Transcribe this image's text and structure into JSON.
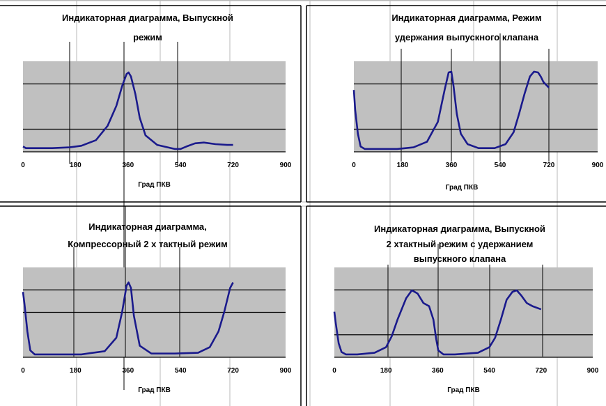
{
  "colors": {
    "plot_background": "#c0c0c0",
    "series_line": "#1a1a8c",
    "grid_line": "#000000",
    "frame_line": "#000000",
    "sheet_grid": "#b8b8b8"
  },
  "chart_data": [
    {
      "type": "line",
      "title_lines": [
        "Индикаторная диаграмма, Выпускной",
        "режим"
      ],
      "xlabel": "Град ПКВ",
      "xlim": [
        0,
        900
      ],
      "x_ticks": [
        "0",
        "180",
        "360",
        "540",
        "720",
        "900"
      ],
      "grid": true,
      "series": [
        {
          "x": [
            0,
            10,
            40,
            100,
            160,
            200,
            250,
            290,
            320,
            340,
            355,
            362,
            370,
            385,
            400,
            420,
            460,
            520,
            540,
            560,
            590,
            620,
            660,
            700,
            720
          ],
          "y": [
            0.04,
            0.02,
            0.02,
            0.02,
            0.03,
            0.05,
            0.12,
            0.3,
            0.55,
            0.8,
            0.95,
            0.97,
            0.92,
            0.7,
            0.4,
            0.18,
            0.06,
            0.01,
            0.01,
            0.04,
            0.08,
            0.09,
            0.07,
            0.06,
            0.06
          ]
        }
      ]
    },
    {
      "type": "line",
      "title_lines": [
        "Индикаторная диаграмма, Режим",
        "удержания выпускного клапана"
      ],
      "xlabel": "Град ПКВ",
      "xlim": [
        0,
        900
      ],
      "x_ticks": [
        "0",
        "180",
        "360",
        "540",
        "720",
        "900"
      ],
      "grid": true,
      "series": [
        {
          "x": [
            0,
            5,
            15,
            25,
            40,
            80,
            160,
            220,
            270,
            310,
            335,
            350,
            360,
            368,
            380,
            395,
            420,
            460,
            520,
            560,
            590,
            610,
            630,
            650,
            665,
            680,
            690,
            700,
            720
          ],
          "y": [
            0.75,
            0.5,
            0.2,
            0.04,
            0.01,
            0.01,
            0.01,
            0.03,
            0.1,
            0.35,
            0.75,
            0.97,
            0.98,
            0.8,
            0.45,
            0.2,
            0.07,
            0.02,
            0.02,
            0.07,
            0.22,
            0.45,
            0.7,
            0.92,
            0.98,
            0.97,
            0.92,
            0.85,
            0.78
          ]
        }
      ]
    },
    {
      "type": "line",
      "title_lines": [
        "Индикаторная диаграмма,",
        "Компрессорный 2 х тактный режим"
      ],
      "xlabel": "Град ПКВ",
      "xlim": [
        0,
        900
      ],
      "x_ticks": [
        "0",
        "180",
        "360",
        "540",
        "720",
        "900"
      ],
      "grid": true,
      "series": [
        {
          "x": [
            0,
            5,
            15,
            25,
            40,
            80,
            200,
            280,
            320,
            340,
            355,
            362,
            370,
            380,
            400,
            440,
            520,
            600,
            640,
            670,
            690,
            700,
            710,
            720
          ],
          "y": [
            0.8,
            0.65,
            0.3,
            0.06,
            0.01,
            0.01,
            0.01,
            0.05,
            0.22,
            0.55,
            0.88,
            0.92,
            0.85,
            0.5,
            0.12,
            0.02,
            0.02,
            0.03,
            0.1,
            0.3,
            0.55,
            0.7,
            0.85,
            0.92
          ]
        }
      ]
    },
    {
      "type": "line",
      "title_lines": [
        "Индикаторная диаграмма, Выпускной",
        "2 хтактный режим с удержанием",
        "выпускного клапана"
      ],
      "xlabel": "Град ПКВ",
      "xlim": [
        0,
        900
      ],
      "x_ticks": [
        "0",
        "180",
        "360",
        "540",
        "720",
        "900"
      ],
      "grid": true,
      "series": [
        {
          "x": [
            0,
            5,
            15,
            25,
            40,
            80,
            140,
            180,
            200,
            220,
            250,
            270,
            290,
            310,
            330,
            345,
            355,
            362,
            380,
            420,
            500,
            540,
            560,
            580,
            600,
            620,
            635,
            650,
            670,
            690,
            720
          ],
          "y": [
            0.55,
            0.4,
            0.15,
            0.04,
            0.01,
            0.01,
            0.03,
            0.1,
            0.24,
            0.45,
            0.72,
            0.82,
            0.78,
            0.66,
            0.62,
            0.45,
            0.2,
            0.06,
            0.01,
            0.01,
            0.03,
            0.1,
            0.22,
            0.45,
            0.7,
            0.8,
            0.82,
            0.76,
            0.66,
            0.62,
            0.58
          ]
        }
      ]
    }
  ]
}
